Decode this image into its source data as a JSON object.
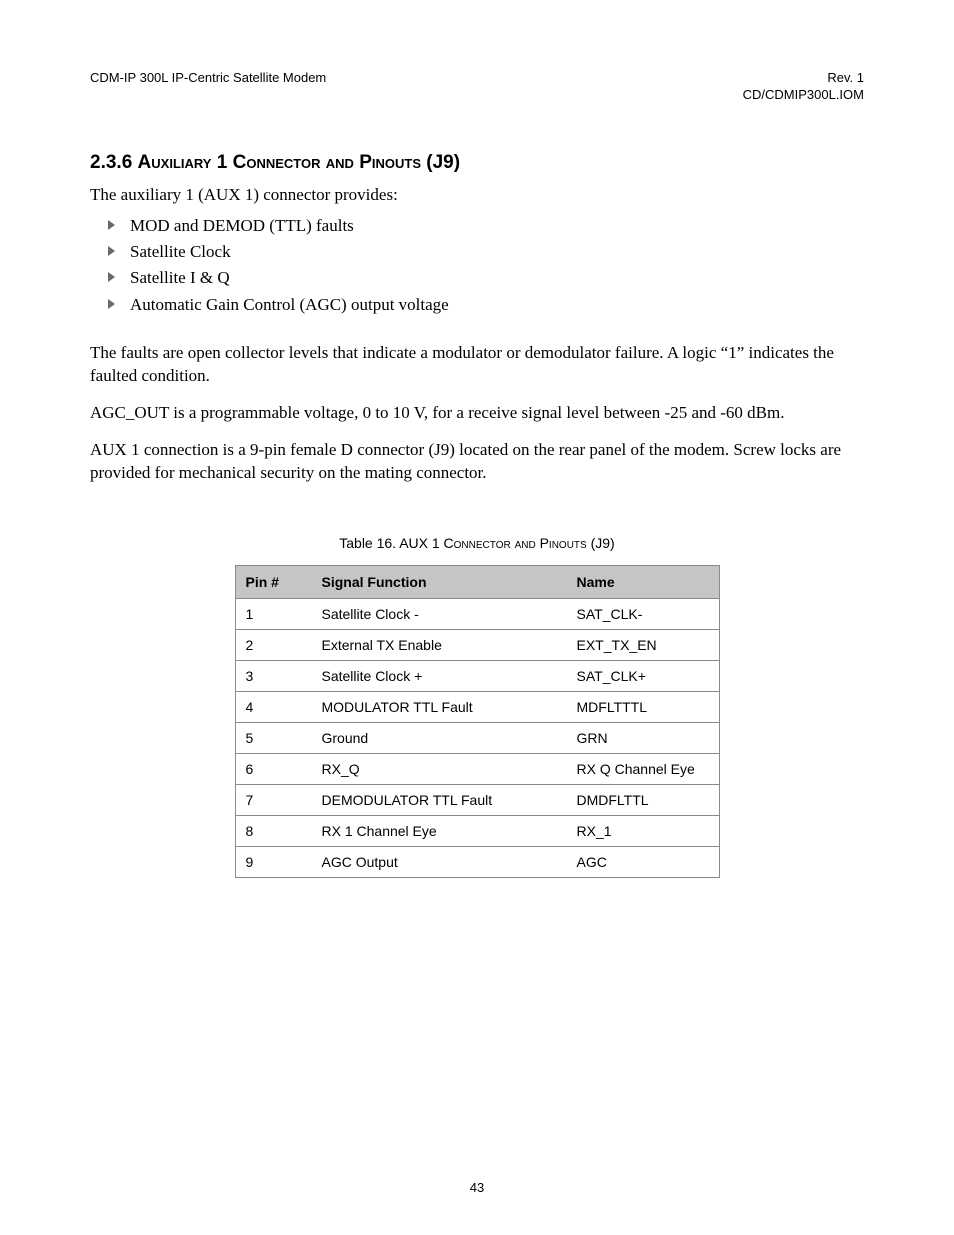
{
  "header": {
    "left": "CDM-IP 300L IP-Centric Satellite Modem",
    "right_line1": "Rev. 1",
    "right_line2": "CD/CDMIP300L.IOM"
  },
  "section": {
    "number": "2.3.6",
    "title_word1": "Auxiliary",
    "title_word2": "1",
    "title_word3": "Connector and Pinouts",
    "title_suffix": "(J9)"
  },
  "intro": "The auxiliary 1 (AUX 1) connector provides:",
  "bullets": [
    "MOD and DEMOD (TTL) faults",
    "Satellite Clock",
    "Satellite I & Q",
    "Automatic Gain Control (AGC) output voltage"
  ],
  "paragraphs": [
    "The faults are open collector levels that indicate a modulator or demodulator failure. A logic “1” indicates the faulted condition.",
    "AGC_OUT is a programmable voltage, 0 to 10 V, for a receive signal level between -25 and -60 dBm.",
    "AUX 1 connection is a 9-pin female D connector (J9) located on the rear panel of the modem. Screw locks are provided for mechanical security on the mating connector."
  ],
  "table": {
    "caption_prefix": "Table 16.  AUX 1",
    "caption_sc": "Connector and Pinouts",
    "caption_suffix": "(J9)",
    "columns": [
      "Pin #",
      "Signal Function",
      "Name"
    ],
    "rows": [
      [
        "1",
        "Satellite Clock -",
        "SAT_CLK-"
      ],
      [
        "2",
        "External TX Enable",
        "EXT_TX_EN"
      ],
      [
        "3",
        "Satellite Clock +",
        "SAT_CLK+"
      ],
      [
        "4",
        "MODULATOR TTL Fault",
        "MDFLTTTL"
      ],
      [
        "5",
        "Ground",
        "GRN"
      ],
      [
        "6",
        "RX_Q",
        "RX Q Channel Eye"
      ],
      [
        "7",
        "DEMODULATOR TTL Fault",
        "DMDFLTTL"
      ],
      [
        "8",
        "RX 1 Channel Eye",
        "RX_1"
      ],
      [
        "9",
        "AGC Output",
        "AGC"
      ]
    ]
  },
  "page_number": "43",
  "colors": {
    "text": "#000000",
    "bullet_triangle": "#6a6a6a",
    "table_header_bg": "#c5c5c5",
    "table_border": "#8a8a8a",
    "background": "#ffffff"
  }
}
